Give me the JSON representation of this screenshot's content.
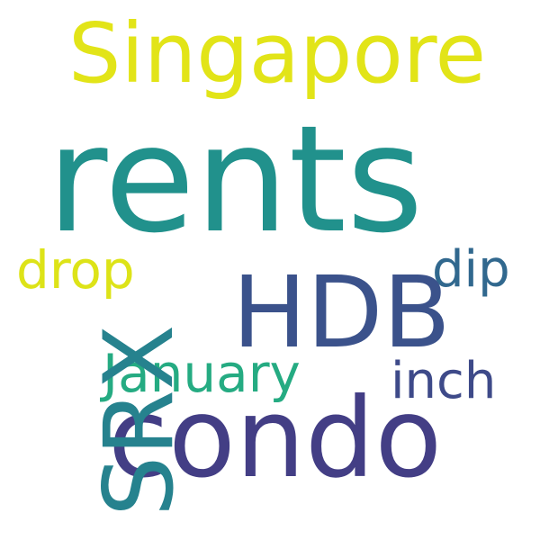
{
  "words": {
    "singapore": "Singapore",
    "rents": "rents",
    "drop": "drop",
    "dip": "dip",
    "hdb": "HDB",
    "january": "January",
    "inch": "inch",
    "condo": "condo",
    "srx": "SRX"
  },
  "colors": {
    "background": "#ffffff",
    "singapore": "#e2e418",
    "rents": "#21918c",
    "drop": "#dde318",
    "dip": "#31688e",
    "hdb": "#3b528b",
    "january": "#25ab82",
    "inch": "#3e4a89",
    "condo": "#433e85",
    "srx": "#26828e"
  }
}
